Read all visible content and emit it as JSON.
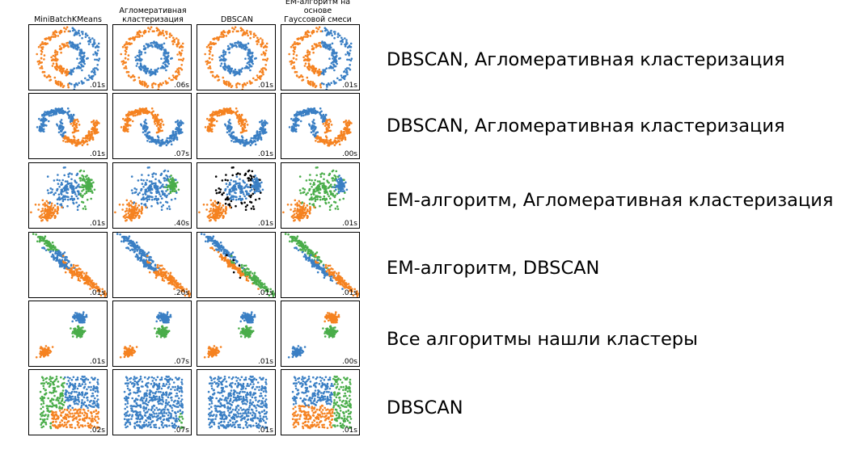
{
  "colors": {
    "blue": "#3a7fc4",
    "orange": "#f58220",
    "green": "#4aad4a",
    "black": "#000000"
  },
  "column_titles": [
    "MiniBatchKMeans",
    "Агломеративная\nкластеризация",
    "DBSCAN",
    "EM-алгоритм на основе\nГауссовой смеси"
  ],
  "rows": [
    {
      "dataset": "circles",
      "timings": [
        ".01s",
        ".06s",
        ".01s",
        ".01s"
      ],
      "label": "DBSCAN, Агломеративная кластеризация"
    },
    {
      "dataset": "moons",
      "timings": [
        ".01s",
        ".07s",
        ".01s",
        ".00s"
      ],
      "label": "DBSCAN, Агломеративная кластеризация"
    },
    {
      "dataset": "varied",
      "timings": [
        ".01s",
        ".40s",
        ".01s",
        ".01s"
      ],
      "label": "EM-алгоритм, Агломеративная кластеризация"
    },
    {
      "dataset": "aniso",
      "timings": [
        ".01s",
        ".20s",
        ".01s",
        ".01s"
      ],
      "label": "EM-алгоритм, DBSCAN"
    },
    {
      "dataset": "blobs",
      "timings": [
        ".01s",
        ".07s",
        ".01s",
        ".00s"
      ],
      "label": "Все алгоритмы нашли кластеры"
    },
    {
      "dataset": "no_structure",
      "timings": [
        ".02s",
        ".07s",
        ".01s",
        ".01s"
      ],
      "label": "DBSCAN"
    }
  ]
}
